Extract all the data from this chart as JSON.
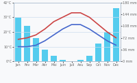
{
  "months": [
    "Jan",
    "Fev",
    "Mar",
    "Abr",
    "Mai",
    "Juin",
    "Juil",
    "Aou",
    "Sep",
    "Oct",
    "Nov",
    "Dec"
  ],
  "temp_min": [
    10,
    10,
    11,
    14,
    18,
    22,
    25,
    25,
    22,
    18,
    14,
    11
  ],
  "temp_max": [
    15,
    16,
    18,
    22,
    27,
    30,
    33,
    33,
    30,
    25,
    20,
    16
  ],
  "precipitation": [
    134,
    108,
    72,
    36,
    18,
    4,
    1,
    4,
    18,
    54,
    90,
    162
  ],
  "temp_color_min": "#4466cc",
  "temp_color_max": "#cc4444",
  "precip_color": "#55ccee",
  "ylim_left": [
    0,
    40
  ],
  "ylim_right": [
    0,
    180
  ],
  "yticks_left": [
    0,
    10,
    20,
    30,
    40
  ],
  "ytick_labels_left": [
    "0°C",
    "10°C",
    "20°C",
    "30°C",
    "40°C"
  ],
  "yticks_right": [
    0,
    36,
    72,
    108,
    144,
    180
  ],
  "ytick_labels_right": [
    "0 mm",
    "36 mm",
    "72 mm",
    "108 mm",
    "144 mm",
    "180 mm"
  ],
  "background_color": "#f8f9fb",
  "grid_color": "#ccddee"
}
